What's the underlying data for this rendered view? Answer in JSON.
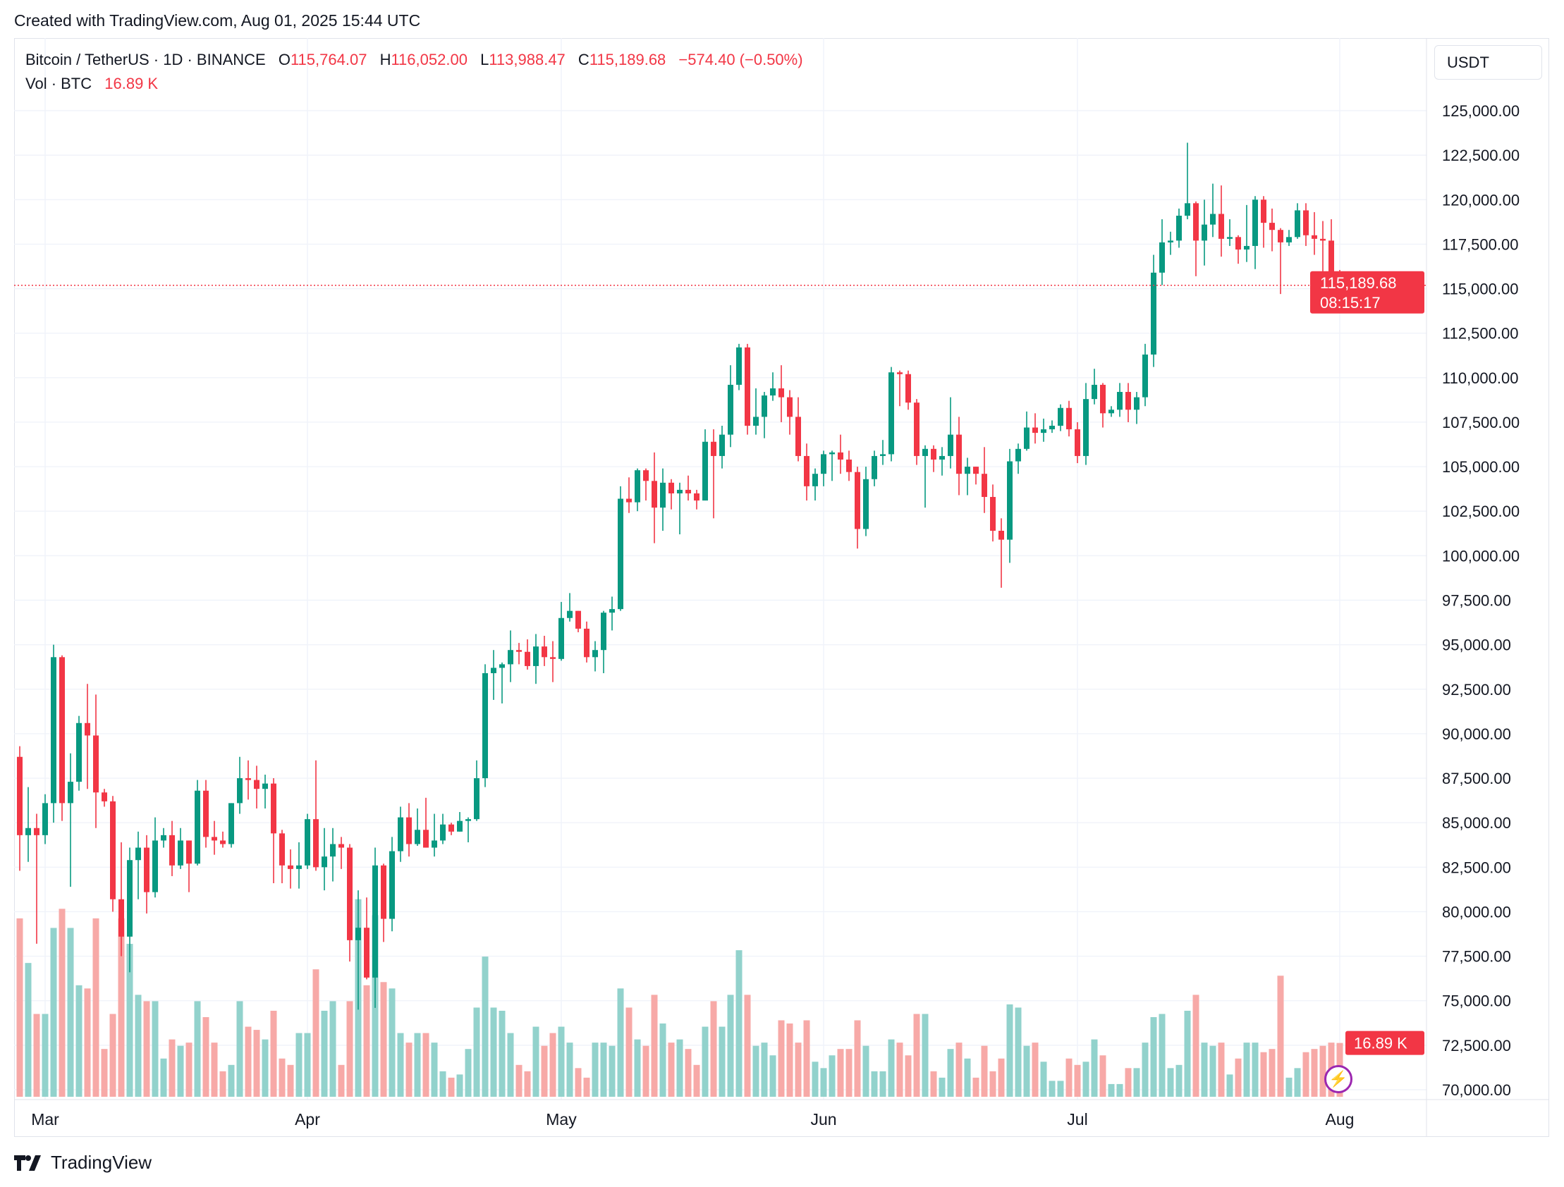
{
  "credit": "Created with TradingView.com, Aug 01, 2025 15:44 UTC",
  "legend": {
    "symbol": "Bitcoin / TetherUS · 1D · BINANCE",
    "o_label": "O",
    "open": "115,764.07",
    "h_label": "H",
    "high": "116,052.00",
    "l_label": "L",
    "low": "113,988.47",
    "c_label": "C",
    "close": "115,189.68",
    "change": "−574.40 (−0.50%)",
    "vol_label": "Vol · BTC",
    "vol_value": "16.89 K"
  },
  "currency": "USDT",
  "price_tag": {
    "price": "115,189.68",
    "countdown": "08:15:17"
  },
  "volume_tag": "16.89 K",
  "footer": {
    "brand": "TradingView"
  },
  "colors": {
    "up": "#089981",
    "down": "#F23645",
    "up_volume": "#92D2CC",
    "down_volume": "#F7A9A7",
    "grid": "#F0F3FA",
    "indicator": "#9C27B0"
  },
  "chart_data": {
    "type": "candlestick",
    "grid": true,
    "ylim": [
      70000,
      125000
    ],
    "y_ticks": [
      "125,000.00",
      "122,500.00",
      "120,000.00",
      "117,500.00",
      "115,000.00",
      "112,500.00",
      "110,000.00",
      "107,500.00",
      "105,000.00",
      "102,500.00",
      "100,000.00",
      "97,500.00",
      "95,000.00",
      "92,500.00",
      "90,000.00",
      "87,500.00",
      "85,000.00",
      "82,500.00",
      "80,000.00",
      "77,500.00",
      "75,000.00",
      "72,500.00",
      "70,000.00"
    ],
    "x_ticks": [
      {
        "label": "Mar",
        "date": "2025-03-01"
      },
      {
        "label": "Apr",
        "date": "2025-04-01"
      },
      {
        "label": "May",
        "date": "2025-05-01"
      },
      {
        "label": "Jun",
        "date": "2025-06-01"
      },
      {
        "label": "Jul",
        "date": "2025-07-01"
      },
      {
        "label": "Aug",
        "date": "2025-08-01"
      }
    ],
    "last_price": 115189.68,
    "columns": [
      "date",
      "open",
      "high",
      "low",
      "close",
      "volume_k"
    ],
    "candles": [
      [
        "2025-02-26",
        88700,
        89300,
        82300,
        84300,
        56
      ],
      [
        "2025-02-27",
        84300,
        87000,
        82800,
        84700,
        42
      ],
      [
        "2025-02-28",
        84700,
        85500,
        78200,
        84300,
        26
      ],
      [
        "2025-03-01",
        84300,
        86600,
        83800,
        86100,
        26
      ],
      [
        "2025-03-02",
        86100,
        95000,
        85000,
        94300,
        53
      ],
      [
        "2025-03-03",
        94300,
        94400,
        85100,
        86100,
        59
      ],
      [
        "2025-03-04",
        86100,
        88900,
        81400,
        87300,
        53
      ],
      [
        "2025-03-05",
        87300,
        91000,
        86800,
        90600,
        35
      ],
      [
        "2025-03-06",
        90600,
        92800,
        86900,
        89900,
        34
      ],
      [
        "2025-03-07",
        89900,
        92200,
        84700,
        86700,
        56
      ],
      [
        "2025-03-08",
        86700,
        86900,
        85900,
        86200,
        15
      ],
      [
        "2025-03-09",
        86200,
        86500,
        80000,
        80700,
        26
      ],
      [
        "2025-03-10",
        80700,
        83900,
        77500,
        78600,
        56
      ],
      [
        "2025-03-11",
        78600,
        83600,
        76600,
        82900,
        48
      ],
      [
        "2025-03-12",
        82900,
        84500,
        80700,
        83600,
        32
      ],
      [
        "2025-03-13",
        83600,
        84300,
        79900,
        81100,
        30
      ],
      [
        "2025-03-14",
        81100,
        85300,
        80800,
        84000,
        30
      ],
      [
        "2025-03-15",
        84000,
        84700,
        83600,
        84300,
        12
      ],
      [
        "2025-03-16",
        84300,
        85100,
        82000,
        82600,
        18
      ],
      [
        "2025-03-17",
        82600,
        84700,
        82400,
        84000,
        16
      ],
      [
        "2025-03-18",
        84000,
        84000,
        81100,
        82700,
        17
      ],
      [
        "2025-03-19",
        82700,
        87400,
        82600,
        86800,
        30
      ],
      [
        "2025-03-20",
        86800,
        87400,
        83600,
        84200,
        25
      ],
      [
        "2025-03-21",
        84200,
        85100,
        83200,
        84000,
        17
      ],
      [
        "2025-03-22",
        84000,
        84500,
        83600,
        83800,
        8
      ],
      [
        "2025-03-23",
        83800,
        86100,
        83600,
        86100,
        10
      ],
      [
        "2025-03-24",
        86100,
        88700,
        85500,
        87500,
        30
      ],
      [
        "2025-03-25",
        87500,
        88500,
        86300,
        87400,
        22
      ],
      [
        "2025-03-26",
        87400,
        88200,
        85800,
        86900,
        21
      ],
      [
        "2025-03-27",
        86900,
        87700,
        85800,
        87200,
        18
      ],
      [
        "2025-03-28",
        87200,
        87500,
        81600,
        84400,
        27
      ],
      [
        "2025-03-29",
        84400,
        84600,
        81600,
        82600,
        12
      ],
      [
        "2025-03-30",
        82600,
        83500,
        81300,
        82400,
        10
      ],
      [
        "2025-03-31",
        82400,
        83900,
        81300,
        82600,
        20
      ],
      [
        "2025-04-01",
        82600,
        85500,
        82400,
        85200,
        20
      ],
      [
        "2025-04-02",
        85200,
        88500,
        82300,
        82500,
        40
      ],
      [
        "2025-04-03",
        82500,
        84700,
        81200,
        83100,
        27
      ],
      [
        "2025-04-04",
        83100,
        84700,
        81700,
        83800,
        30
      ],
      [
        "2025-04-05",
        83800,
        84200,
        82400,
        83600,
        10
      ],
      [
        "2025-04-06",
        83600,
        83800,
        77200,
        78400,
        30
      ],
      [
        "2025-04-07",
        78400,
        81200,
        74500,
        79100,
        62
      ],
      [
        "2025-04-08",
        79100,
        80800,
        76200,
        76300,
        35
      ],
      [
        "2025-04-09",
        76300,
        83600,
        74600,
        82600,
        57
      ],
      [
        "2025-04-10",
        82600,
        82700,
        78300,
        79600,
        36
      ],
      [
        "2025-04-11",
        79600,
        84200,
        78900,
        83400,
        34
      ],
      [
        "2025-04-12",
        83400,
        85900,
        82800,
        85300,
        20
      ],
      [
        "2025-04-13",
        85300,
        86100,
        83100,
        83800,
        17
      ],
      [
        "2025-04-14",
        83800,
        85800,
        83700,
        84600,
        20
      ],
      [
        "2025-04-15",
        84600,
        86400,
        83600,
        83600,
        20
      ],
      [
        "2025-04-16",
        83600,
        85500,
        83100,
        84000,
        17
      ],
      [
        "2025-04-17",
        84000,
        85500,
        83800,
        84900,
        8
      ],
      [
        "2025-04-18",
        84900,
        85000,
        84300,
        84500,
        6
      ],
      [
        "2025-04-19",
        84500,
        85600,
        84500,
        85100,
        7
      ],
      [
        "2025-04-20",
        85100,
        85300,
        83900,
        85200,
        15
      ],
      [
        "2025-04-21",
        85200,
        88500,
        85100,
        87500,
        28
      ],
      [
        "2025-04-22",
        87500,
        93900,
        87000,
        93400,
        44
      ],
      [
        "2025-04-23",
        93400,
        94700,
        91900,
        93700,
        28
      ],
      [
        "2025-04-24",
        93700,
        94000,
        91700,
        93900,
        27
      ],
      [
        "2025-04-25",
        93900,
        95800,
        92900,
        94700,
        20
      ],
      [
        "2025-04-26",
        94700,
        95100,
        93900,
        94600,
        10
      ],
      [
        "2025-04-27",
        94600,
        95300,
        93600,
        93800,
        8
      ],
      [
        "2025-04-28",
        93800,
        95600,
        92800,
        94900,
        22
      ],
      [
        "2025-04-29",
        94900,
        95500,
        93800,
        94300,
        16
      ],
      [
        "2025-04-30",
        94300,
        95200,
        92900,
        94200,
        20
      ],
      [
        "2025-05-01",
        94200,
        97400,
        94100,
        96500,
        22
      ],
      [
        "2025-05-02",
        96500,
        97900,
        96300,
        96900,
        17
      ],
      [
        "2025-05-03",
        96900,
        96900,
        95700,
        95900,
        9
      ],
      [
        "2025-05-04",
        95900,
        96300,
        94000,
        94300,
        6
      ],
      [
        "2025-05-05",
        94300,
        95200,
        93500,
        94700,
        17
      ],
      [
        "2025-05-06",
        94700,
        96900,
        93400,
        96800,
        17
      ],
      [
        "2025-05-07",
        96800,
        97700,
        95800,
        97000,
        16
      ],
      [
        "2025-05-08",
        97000,
        103900,
        96900,
        103200,
        34
      ],
      [
        "2025-05-09",
        103200,
        104400,
        102400,
        103000,
        28
      ],
      [
        "2025-05-10",
        103000,
        104900,
        102500,
        104800,
        18
      ],
      [
        "2025-05-11",
        104800,
        104900,
        103100,
        104200,
        16
      ],
      [
        "2025-05-12",
        104200,
        105800,
        100700,
        102700,
        32
      ],
      [
        "2025-05-13",
        102700,
        104900,
        101400,
        104100,
        23
      ],
      [
        "2025-05-14",
        104100,
        104300,
        102600,
        103500,
        17
      ],
      [
        "2025-05-15",
        103500,
        104100,
        101200,
        103700,
        18
      ],
      [
        "2025-05-16",
        103700,
        104500,
        103100,
        103500,
        15
      ],
      [
        "2025-05-17",
        103500,
        103700,
        102600,
        103100,
        10
      ],
      [
        "2025-05-18",
        103100,
        107100,
        103100,
        106400,
        22
      ],
      [
        "2025-05-19",
        106400,
        107100,
        102100,
        105600,
        30
      ],
      [
        "2025-05-20",
        105600,
        107300,
        104900,
        106800,
        22
      ],
      [
        "2025-05-21",
        106800,
        110700,
        106100,
        109600,
        32
      ],
      [
        "2025-05-22",
        109600,
        111900,
        109300,
        111700,
        46
      ],
      [
        "2025-05-23",
        111700,
        111900,
        106800,
        107300,
        32
      ],
      [
        "2025-05-24",
        107300,
        109400,
        106800,
        107800,
        16
      ],
      [
        "2025-05-25",
        107800,
        109200,
        106600,
        109000,
        17
      ],
      [
        "2025-05-26",
        109000,
        110300,
        108700,
        109400,
        13
      ],
      [
        "2025-05-27",
        109400,
        110700,
        107500,
        108900,
        24
      ],
      [
        "2025-05-28",
        108900,
        109300,
        106800,
        107800,
        23
      ],
      [
        "2025-05-29",
        107800,
        108900,
        105300,
        105600,
        17
      ],
      [
        "2025-05-30",
        105600,
        106300,
        103100,
        103900,
        24
      ],
      [
        "2025-05-31",
        103900,
        104900,
        103100,
        104600,
        11
      ],
      [
        "2025-06-01",
        104600,
        105900,
        103900,
        105700,
        9
      ],
      [
        "2025-06-02",
        105700,
        105900,
        104200,
        105800,
        13
      ],
      [
        "2025-06-03",
        105800,
        106800,
        104600,
        105400,
        15
      ],
      [
        "2025-06-04",
        105400,
        105900,
        104200,
        104700,
        15
      ],
      [
        "2025-06-05",
        104700,
        105000,
        100400,
        101500,
        24
      ],
      [
        "2025-06-06",
        101500,
        105000,
        101100,
        104300,
        16
      ],
      [
        "2025-06-07",
        104300,
        105900,
        103900,
        105600,
        8
      ],
      [
        "2025-06-08",
        105600,
        106500,
        105100,
        105700,
        8
      ],
      [
        "2025-06-09",
        105700,
        110600,
        105300,
        110300,
        18
      ],
      [
        "2025-06-10",
        110300,
        110400,
        108400,
        110200,
        17
      ],
      [
        "2025-06-11",
        110200,
        110400,
        108200,
        108600,
        13
      ],
      [
        "2025-06-12",
        108600,
        108800,
        105100,
        105600,
        26
      ],
      [
        "2025-06-13",
        105600,
        106200,
        102700,
        106000,
        26
      ],
      [
        "2025-06-14",
        106000,
        106200,
        104700,
        105400,
        8
      ],
      [
        "2025-06-15",
        105400,
        106100,
        104500,
        105600,
        6
      ],
      [
        "2025-06-16",
        105600,
        108900,
        104900,
        106800,
        15
      ],
      [
        "2025-06-17",
        106800,
        107800,
        103400,
        104600,
        17
      ],
      [
        "2025-06-18",
        104600,
        105500,
        103400,
        105000,
        12
      ],
      [
        "2025-06-19",
        105000,
        105000,
        104000,
        104600,
        6
      ],
      [
        "2025-06-20",
        104600,
        106100,
        102400,
        103300,
        16
      ],
      [
        "2025-06-21",
        103300,
        104000,
        100800,
        101400,
        8
      ],
      [
        "2025-06-22",
        101400,
        102100,
        98200,
        100900,
        12
      ],
      [
        "2025-06-23",
        100900,
        106000,
        99600,
        105300,
        29
      ],
      [
        "2025-06-24",
        105300,
        106300,
        104600,
        106000,
        28
      ],
      [
        "2025-06-25",
        106000,
        108100,
        105900,
        107200,
        16
      ],
      [
        "2025-06-26",
        107200,
        108000,
        106300,
        106900,
        17
      ],
      [
        "2025-06-27",
        106900,
        107700,
        106400,
        107100,
        11
      ],
      [
        "2025-06-28",
        107100,
        107600,
        106900,
        107300,
        5
      ],
      [
        "2025-06-29",
        107300,
        108500,
        107000,
        108300,
        5
      ],
      [
        "2025-06-30",
        108300,
        108700,
        106700,
        107100,
        12
      ],
      [
        "2025-07-01",
        107100,
        107500,
        105200,
        105600,
        10
      ],
      [
        "2025-07-02",
        105600,
        109700,
        105100,
        108800,
        11
      ],
      [
        "2025-07-03",
        108800,
        110500,
        108500,
        109600,
        18
      ],
      [
        "2025-07-04",
        109600,
        109700,
        107200,
        108000,
        13
      ],
      [
        "2025-07-05",
        108000,
        108400,
        107800,
        108200,
        4
      ],
      [
        "2025-07-06",
        108200,
        109700,
        107800,
        109200,
        4
      ],
      [
        "2025-07-07",
        109200,
        109700,
        107500,
        108200,
        9
      ],
      [
        "2025-07-08",
        108200,
        109200,
        107400,
        108900,
        9
      ],
      [
        "2025-07-09",
        108900,
        111900,
        108400,
        111300,
        17
      ],
      [
        "2025-07-10",
        111300,
        116900,
        110600,
        115900,
        25
      ],
      [
        "2025-07-11",
        115900,
        118900,
        115200,
        117600,
        26
      ],
      [
        "2025-07-12",
        117600,
        118200,
        116900,
        117700,
        9
      ],
      [
        "2025-07-13",
        117700,
        119500,
        117300,
        119100,
        10
      ],
      [
        "2025-07-14",
        119100,
        123200,
        118900,
        119800,
        27
      ],
      [
        "2025-07-15",
        119800,
        119900,
        115700,
        117700,
        32
      ],
      [
        "2025-07-16",
        117700,
        120000,
        116300,
        118600,
        17
      ],
      [
        "2025-07-17",
        118600,
        120900,
        117900,
        119200,
        16
      ],
      [
        "2025-07-18",
        119200,
        120800,
        116800,
        117800,
        17
      ],
      [
        "2025-07-19",
        117800,
        118900,
        117400,
        117900,
        7
      ],
      [
        "2025-07-20",
        117900,
        118000,
        116400,
        117200,
        12
      ],
      [
        "2025-07-21",
        117200,
        119700,
        116500,
        117400,
        17
      ],
      [
        "2025-07-22",
        117400,
        120200,
        116100,
        120000,
        17
      ],
      [
        "2025-07-23",
        120000,
        120200,
        117300,
        118700,
        14
      ],
      [
        "2025-07-24",
        118700,
        119500,
        117100,
        118300,
        15
      ],
      [
        "2025-07-25",
        118300,
        118400,
        114700,
        117600,
        38
      ],
      [
        "2025-07-26",
        117600,
        118300,
        117400,
        117900,
        6
      ],
      [
        "2025-07-27",
        117900,
        119800,
        117800,
        119400,
        9
      ],
      [
        "2025-07-28",
        119400,
        119800,
        117400,
        118000,
        14
      ],
      [
        "2025-07-29",
        118000,
        119300,
        116900,
        117800,
        15
      ],
      [
        "2025-07-30",
        117800,
        118800,
        115800,
        117700,
        16
      ],
      [
        "2025-07-31",
        117700,
        118900,
        115600,
        115760,
        17
      ],
      [
        "2025-08-01",
        115764.07,
        116052,
        113988.47,
        115189.68,
        16.89
      ]
    ]
  }
}
